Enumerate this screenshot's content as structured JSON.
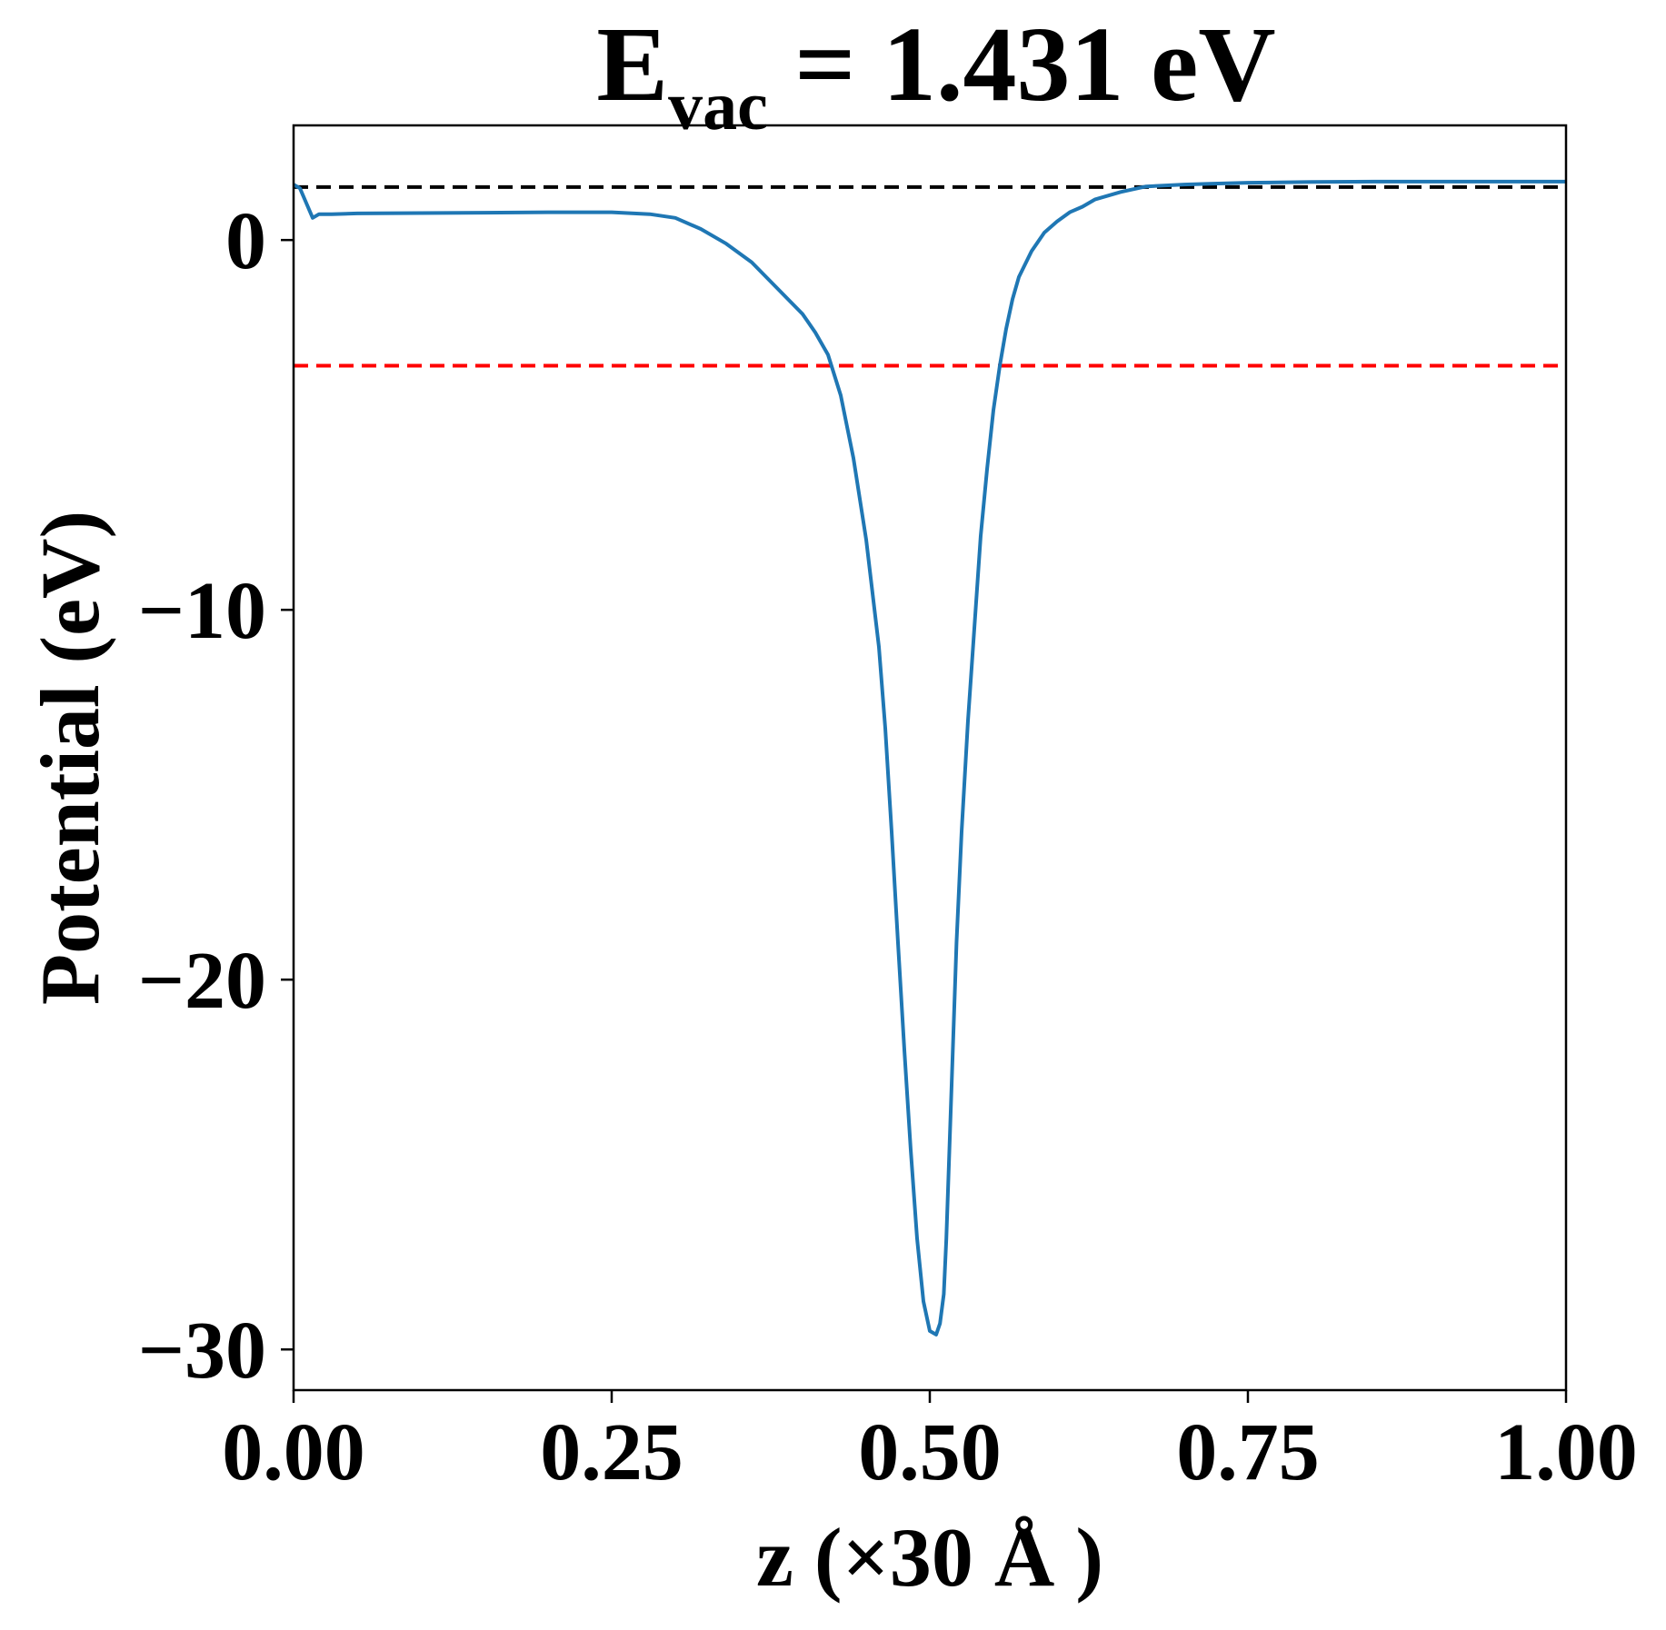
{
  "chart_data": {
    "type": "line",
    "title": "E",
    "title_subscript": "vac",
    "title_rest": " = 1.431 eV",
    "xlabel": "z (×30 Å )",
    "ylabel": "Potential (eV)",
    "xlim": [
      0.0,
      1.0
    ],
    "ylim": [
      -31.1,
      3.1
    ],
    "xticks": [
      0.0,
      0.25,
      0.5,
      0.75,
      1.0
    ],
    "xtick_labels": [
      "0.00",
      "0.25",
      "0.50",
      "0.75",
      "1.00"
    ],
    "yticks": [
      0,
      -10,
      -20,
      -30
    ],
    "ytick_labels": [
      "0",
      "−10",
      "−20",
      "−30"
    ],
    "grid": false,
    "reference_lines": [
      {
        "y": 1.431,
        "color": "#000000",
        "style": "dashed"
      },
      {
        "y": -3.4,
        "color": "#ff0000",
        "style": "dashed"
      }
    ],
    "series": [
      {
        "color": "#1f77b4",
        "x": [
          0.0,
          0.005,
          0.01,
          0.015,
          0.02,
          0.03,
          0.05,
          0.1,
          0.15,
          0.2,
          0.25,
          0.28,
          0.3,
          0.32,
          0.34,
          0.36,
          0.38,
          0.4,
          0.41,
          0.42,
          0.43,
          0.44,
          0.45,
          0.46,
          0.465,
          0.47,
          0.475,
          0.48,
          0.485,
          0.49,
          0.495,
          0.5,
          0.505,
          0.508,
          0.511,
          0.513,
          0.515,
          0.518,
          0.521,
          0.525,
          0.53,
          0.535,
          0.54,
          0.545,
          0.55,
          0.555,
          0.56,
          0.565,
          0.57,
          0.58,
          0.59,
          0.6,
          0.61,
          0.62,
          0.63,
          0.65,
          0.67,
          0.7,
          0.72,
          0.75,
          0.8,
          0.85,
          0.9,
          0.95,
          1.0
        ],
        "y": [
          1.5,
          1.4,
          1.0,
          0.6,
          0.7,
          0.7,
          0.72,
          0.73,
          0.74,
          0.75,
          0.75,
          0.7,
          0.6,
          0.3,
          -0.1,
          -0.6,
          -1.3,
          -2.0,
          -2.5,
          -3.1,
          -4.2,
          -5.9,
          -8.1,
          -11.0,
          -13.2,
          -16.0,
          -19.0,
          -21.9,
          -24.6,
          -27.0,
          -28.7,
          -29.5,
          -29.6,
          -29.3,
          -28.5,
          -27.0,
          -25.0,
          -22.0,
          -19.0,
          -16.0,
          -13.0,
          -10.5,
          -8.0,
          -6.2,
          -4.6,
          -3.4,
          -2.4,
          -1.6,
          -1.0,
          -0.3,
          0.2,
          0.5,
          0.75,
          0.9,
          1.1,
          1.3,
          1.45,
          1.5,
          1.52,
          1.55,
          1.57,
          1.58,
          1.58,
          1.58,
          1.58
        ]
      }
    ]
  }
}
